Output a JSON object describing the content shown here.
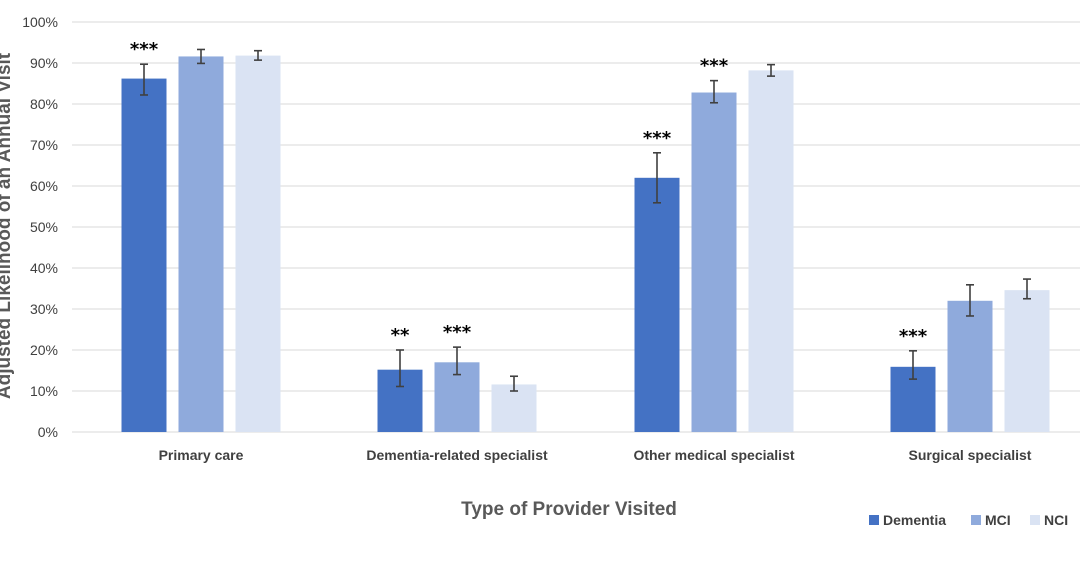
{
  "chart_data": {
    "type": "bar",
    "title": "",
    "xlabel": "Type of Provider Visited",
    "ylabel": "Adjusted Likelihood of an Annual Visit",
    "ylim": [
      0,
      100
    ],
    "yticks": [
      "0%",
      "10%",
      "20%",
      "30%",
      "40%",
      "50%",
      "60%",
      "70%",
      "80%",
      "90%",
      "100%"
    ],
    "grid": true,
    "legend_position": "bottom-right",
    "categories": [
      "Primary care",
      "Dementia-related specialist",
      "Other medical specialist",
      "Surgical specialist"
    ],
    "series": [
      {
        "name": "Dementia",
        "color": "#4472c4",
        "values": [
          86.2,
          15.2,
          62.0,
          15.9
        ],
        "err_low": [
          82.2,
          11.1,
          55.9,
          12.9
        ],
        "err_high": [
          89.7,
          20.0,
          68.1,
          19.8
        ],
        "significance": [
          "***",
          "**",
          "***",
          "***"
        ]
      },
      {
        "name": "MCI",
        "color": "#8faadc",
        "values": [
          91.6,
          17.0,
          82.8,
          32.0
        ],
        "err_low": [
          89.9,
          14.0,
          80.3,
          28.3
        ],
        "err_high": [
          93.3,
          20.7,
          85.7,
          35.9
        ],
        "significance": [
          "",
          "***",
          "***",
          ""
        ]
      },
      {
        "name": "NCI",
        "color": "#dae3f3",
        "values": [
          91.8,
          11.6,
          88.2,
          34.6
        ],
        "err_low": [
          90.7,
          10.0,
          86.8,
          32.5
        ],
        "err_high": [
          93.0,
          13.6,
          89.6,
          37.3
        ],
        "significance": [
          "",
          "",
          "",
          ""
        ]
      }
    ]
  }
}
